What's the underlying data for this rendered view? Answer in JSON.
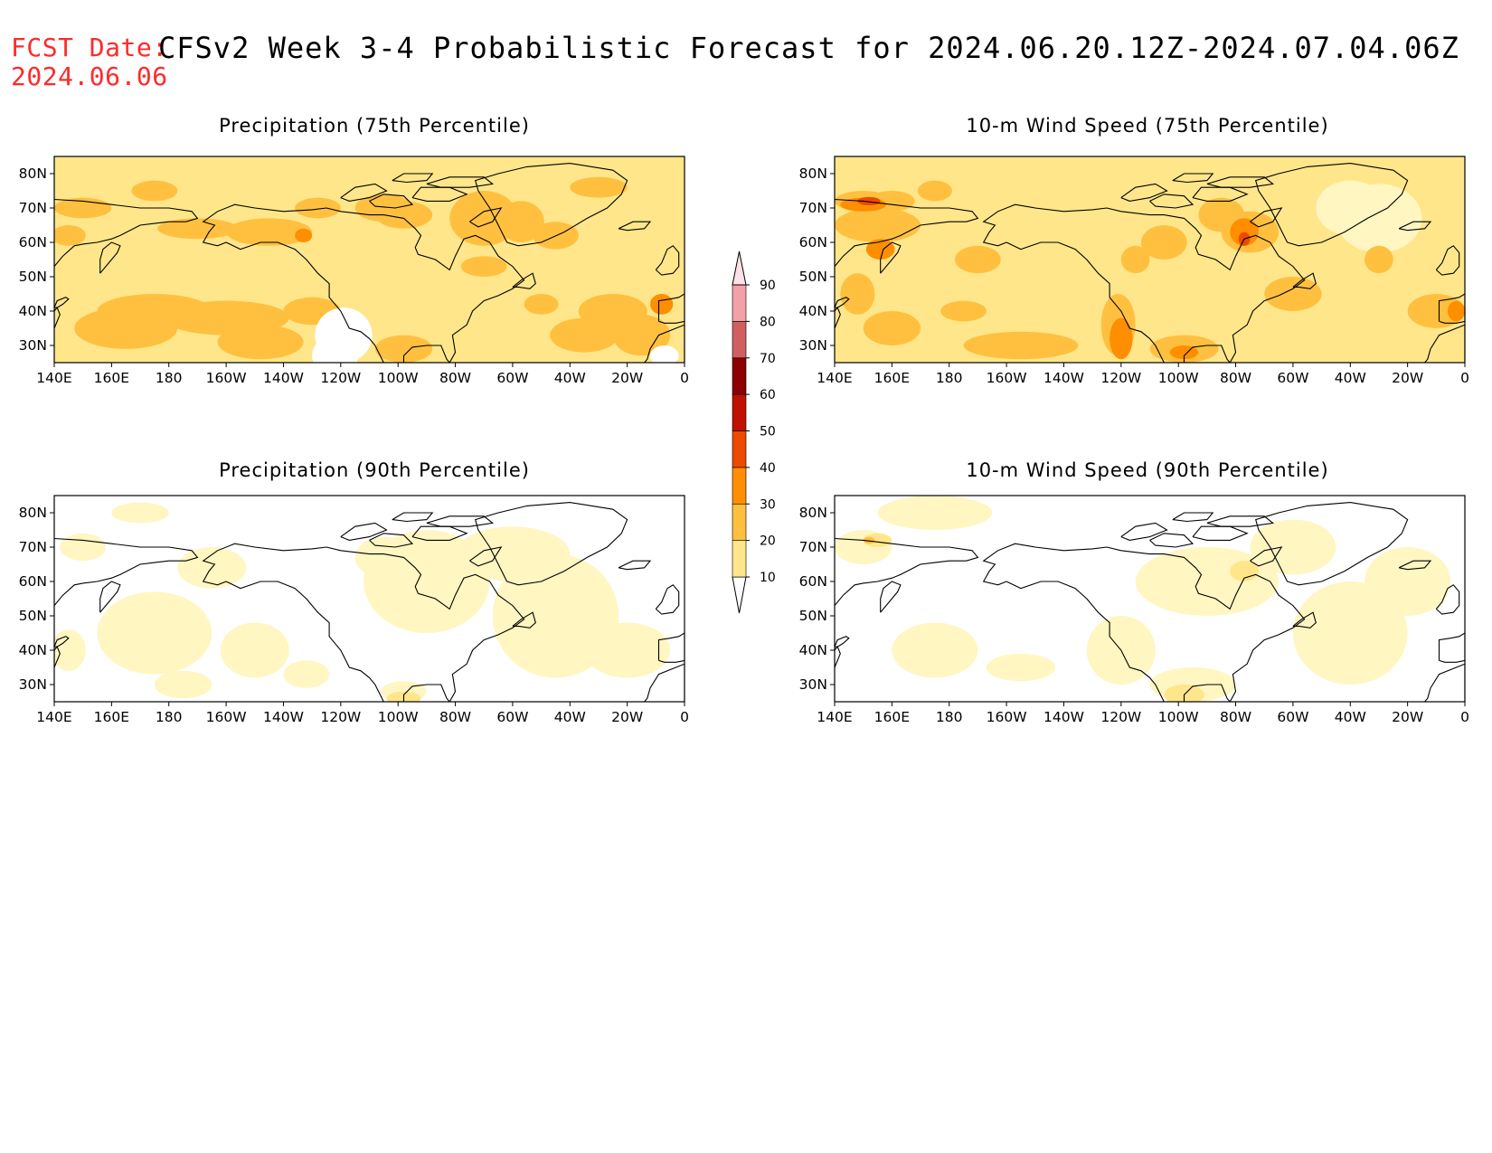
{
  "header": {
    "fcst_label": "FCST Date:",
    "fcst_date": "2024.06.06",
    "title": "CFSv2 Week 3-4 Probabilistic Forecast for 2024.06.20.12Z-2024.07.04.06Z"
  },
  "axes": {
    "lat_labels": [
      "80N",
      "70N",
      "60N",
      "50N",
      "40N",
      "30N"
    ],
    "lon_labels": [
      "140E",
      "160E",
      "180",
      "160W",
      "140W",
      "120W",
      "100W",
      "80W",
      "60W",
      "40W",
      "20W",
      "0"
    ],
    "lat_range": [
      25,
      85
    ],
    "lon_range_east_deg": [
      140,
      360
    ]
  },
  "panels": [
    {
      "id": "precip75",
      "title": "Precipitation (75th Percentile)"
    },
    {
      "id": "wind75",
      "title": "10-m Wind Speed (75th Percentile)"
    },
    {
      "id": "precip90",
      "title": "Precipitation (90th Percentile)"
    },
    {
      "id": "wind90",
      "title": "10-m Wind Speed (90th Percentile)"
    }
  ],
  "colorbar": {
    "levels": [
      "10",
      "20",
      "30",
      "40",
      "50",
      "60",
      "70",
      "80",
      "90"
    ],
    "colors": [
      "#fff6c2",
      "#ffe68a",
      "#ffc040",
      "#ff8e00",
      "#ec4a00",
      "#c01000",
      "#8c0000",
      "#d06060",
      "#f4a0a8",
      "#ffe0e6"
    ],
    "background": "#ffffff"
  }
}
